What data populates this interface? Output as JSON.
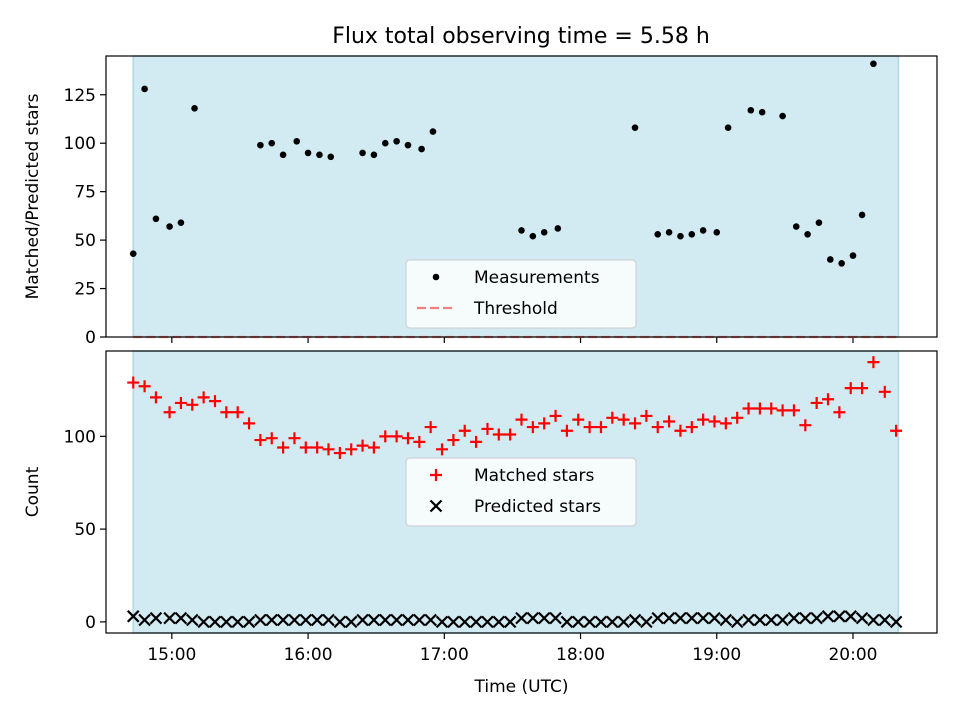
{
  "chart_data": [
    {
      "type": "scatter",
      "title": "Flux total observing time = 5.58 h",
      "xlabel": "",
      "ylabel": "Matched/Predicted stars",
      "ylim": [
        0,
        145
      ],
      "yticks": [
        0,
        25,
        50,
        75,
        100,
        125
      ],
      "xlim": [
        "14:31",
        "20:37"
      ],
      "shaded_span": [
        "14:43",
        "20:20"
      ],
      "shade_color": "#add8e6",
      "legend": {
        "placement": "lower-center",
        "entries": [
          "Measurements",
          "Threshold"
        ]
      },
      "series": [
        {
          "name": "Measurements",
          "marker": "dot",
          "color": "#000000",
          "points": [
            [
              "14:43",
              43
            ],
            [
              "14:48",
              128
            ],
            [
              "14:53",
              61
            ],
            [
              "14:59",
              57
            ],
            [
              "15:04",
              59
            ],
            [
              "15:10",
              118
            ],
            [
              "15:39",
              99
            ],
            [
              "15:44",
              100
            ],
            [
              "15:49",
              94
            ],
            [
              "15:55",
              101
            ],
            [
              "16:00",
              95
            ],
            [
              "16:05",
              94
            ],
            [
              "16:10",
              93
            ],
            [
              "16:24",
              95
            ],
            [
              "16:29",
              94
            ],
            [
              "16:34",
              100
            ],
            [
              "16:39",
              101
            ],
            [
              "16:44",
              99
            ],
            [
              "16:50",
              97
            ],
            [
              "16:55",
              106
            ],
            [
              "17:34",
              55
            ],
            [
              "17:39",
              52
            ],
            [
              "17:44",
              54
            ],
            [
              "17:50",
              56
            ],
            [
              "18:24",
              108
            ],
            [
              "18:34",
              53
            ],
            [
              "18:39",
              54
            ],
            [
              "18:44",
              52
            ],
            [
              "18:49",
              53
            ],
            [
              "18:54",
              55
            ],
            [
              "19:00",
              54
            ],
            [
              "19:05",
              108
            ],
            [
              "19:15",
              117
            ],
            [
              "19:20",
              116
            ],
            [
              "19:29",
              114
            ],
            [
              "19:35",
              57
            ],
            [
              "19:40",
              53
            ],
            [
              "19:45",
              59
            ],
            [
              "19:50",
              40
            ],
            [
              "19:55",
              38
            ],
            [
              "20:00",
              42
            ],
            [
              "20:04",
              63
            ],
            [
              "20:09",
              141
            ]
          ]
        },
        {
          "name": "Threshold",
          "marker": "dashed-line",
          "color": "#f08080",
          "value": 0
        }
      ]
    },
    {
      "type": "scatter",
      "title": "",
      "xlabel": "Time (UTC)",
      "ylabel": "Count",
      "ylim": [
        -6,
        146
      ],
      "yticks": [
        0,
        50,
        100
      ],
      "xlim": [
        "14:31",
        "20:37"
      ],
      "xticks": [
        "15:00",
        "16:00",
        "17:00",
        "18:00",
        "19:00",
        "20:00"
      ],
      "shaded_span": [
        "14:43",
        "20:20"
      ],
      "shade_color": "#add8e6",
      "legend": {
        "placement": "center",
        "entries": [
          "Matched stars",
          "Predicted stars"
        ]
      },
      "series": [
        {
          "name": "Matched stars",
          "marker": "plus",
          "color": "#ff0000",
          "points": [
            [
              "14:43",
              129
            ],
            [
              "14:48",
              127
            ],
            [
              "14:53",
              121
            ],
            [
              "14:59",
              113
            ],
            [
              "15:04",
              118
            ],
            [
              "15:09",
              117
            ],
            [
              "15:14",
              121
            ],
            [
              "15:19",
              119
            ],
            [
              "15:24",
              113
            ],
            [
              "15:29",
              113
            ],
            [
              "15:34",
              107
            ],
            [
              "15:39",
              98
            ],
            [
              "15:44",
              99
            ],
            [
              "15:49",
              94
            ],
            [
              "15:54",
              99
            ],
            [
              "15:59",
              94
            ],
            [
              "16:04",
              94
            ],
            [
              "16:09",
              93
            ],
            [
              "16:14",
              91
            ],
            [
              "16:19",
              93
            ],
            [
              "16:24",
              95
            ],
            [
              "16:29",
              94
            ],
            [
              "16:34",
              100
            ],
            [
              "16:39",
              100
            ],
            [
              "16:44",
              99
            ],
            [
              "16:49",
              97
            ],
            [
              "16:54",
              105
            ],
            [
              "16:59",
              93
            ],
            [
              "17:04",
              98
            ],
            [
              "17:09",
              103
            ],
            [
              "17:14",
              97
            ],
            [
              "17:19",
              104
            ],
            [
              "17:24",
              101
            ],
            [
              "17:29",
              101
            ],
            [
              "17:34",
              109
            ],
            [
              "17:39",
              105
            ],
            [
              "17:44",
              107
            ],
            [
              "17:49",
              111
            ],
            [
              "17:54",
              103
            ],
            [
              "17:59",
              109
            ],
            [
              "18:04",
              105
            ],
            [
              "18:09",
              105
            ],
            [
              "18:14",
              110
            ],
            [
              "18:19",
              109
            ],
            [
              "18:24",
              107
            ],
            [
              "18:29",
              111
            ],
            [
              "18:34",
              105
            ],
            [
              "18:39",
              108
            ],
            [
              "18:44",
              103
            ],
            [
              "18:49",
              105
            ],
            [
              "18:54",
              109
            ],
            [
              "18:59",
              108
            ],
            [
              "19:04",
              107
            ],
            [
              "19:09",
              110
            ],
            [
              "19:14",
              115
            ],
            [
              "19:19",
              115
            ],
            [
              "19:24",
              115
            ],
            [
              "19:29",
              114
            ],
            [
              "19:34",
              114
            ],
            [
              "19:39",
              106
            ],
            [
              "19:44",
              118
            ],
            [
              "19:49",
              120
            ],
            [
              "19:54",
              113
            ],
            [
              "19:59",
              126
            ],
            [
              "20:04",
              126
            ],
            [
              "20:09",
              140
            ],
            [
              "20:14",
              124
            ],
            [
              "20:19",
              103
            ]
          ]
        },
        {
          "name": "Predicted stars",
          "marker": "x",
          "color": "#000000",
          "points": [
            [
              "14:43",
              3
            ],
            [
              "14:48",
              1
            ],
            [
              "14:53",
              2
            ],
            [
              "14:59",
              2
            ],
            [
              "15:04",
              2
            ],
            [
              "15:09",
              1
            ],
            [
              "15:14",
              0
            ],
            [
              "15:19",
              0
            ],
            [
              "15:24",
              0
            ],
            [
              "15:29",
              0
            ],
            [
              "15:34",
              0
            ],
            [
              "15:39",
              1
            ],
            [
              "15:44",
              1
            ],
            [
              "15:49",
              1
            ],
            [
              "15:54",
              1
            ],
            [
              "15:59",
              1
            ],
            [
              "16:04",
              1
            ],
            [
              "16:09",
              1
            ],
            [
              "16:14",
              0
            ],
            [
              "16:19",
              0
            ],
            [
              "16:24",
              1
            ],
            [
              "16:29",
              1
            ],
            [
              "16:34",
              1
            ],
            [
              "16:39",
              1
            ],
            [
              "16:44",
              1
            ],
            [
              "16:49",
              1
            ],
            [
              "16:54",
              1
            ],
            [
              "16:59",
              0
            ],
            [
              "17:04",
              0
            ],
            [
              "17:09",
              0
            ],
            [
              "17:14",
              0
            ],
            [
              "17:19",
              0
            ],
            [
              "17:24",
              0
            ],
            [
              "17:29",
              0
            ],
            [
              "17:34",
              2
            ],
            [
              "17:39",
              2
            ],
            [
              "17:44",
              2
            ],
            [
              "17:49",
              2
            ],
            [
              "17:54",
              0
            ],
            [
              "17:59",
              0
            ],
            [
              "18:04",
              0
            ],
            [
              "18:09",
              0
            ],
            [
              "18:14",
              0
            ],
            [
              "18:19",
              0
            ],
            [
              "18:24",
              1
            ],
            [
              "18:29",
              0
            ],
            [
              "18:34",
              2
            ],
            [
              "18:39",
              2
            ],
            [
              "18:44",
              2
            ],
            [
              "18:49",
              2
            ],
            [
              "18:54",
              2
            ],
            [
              "18:59",
              2
            ],
            [
              "19:04",
              1
            ],
            [
              "19:09",
              0
            ],
            [
              "19:14",
              1
            ],
            [
              "19:19",
              1
            ],
            [
              "19:24",
              1
            ],
            [
              "19:29",
              1
            ],
            [
              "19:34",
              2
            ],
            [
              "19:39",
              2
            ],
            [
              "19:44",
              2
            ],
            [
              "19:49",
              3
            ],
            [
              "19:54",
              3
            ],
            [
              "19:59",
              3
            ],
            [
              "20:04",
              2
            ],
            [
              "20:09",
              1
            ],
            [
              "20:14",
              1
            ],
            [
              "20:19",
              0
            ]
          ]
        }
      ]
    }
  ]
}
